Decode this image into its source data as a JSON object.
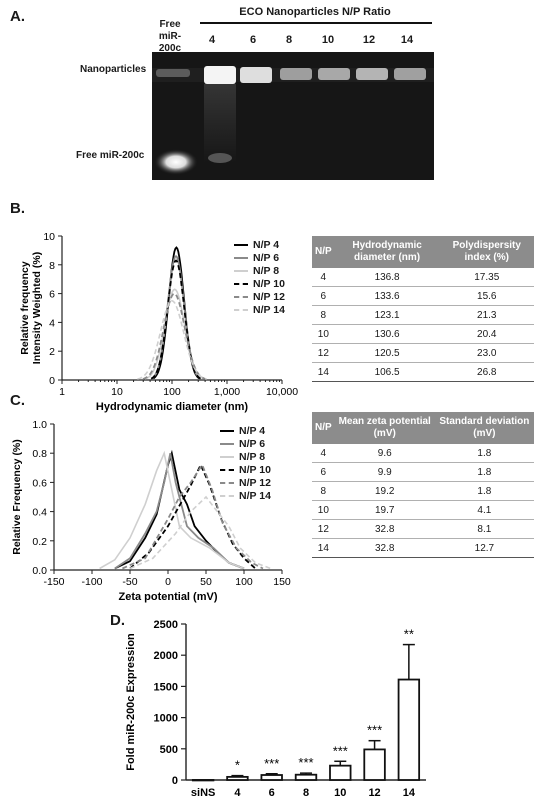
{
  "panel_a": {
    "letter": "A.",
    "title": "ECO Nanoparticles N/P Ratio",
    "free_lane_label": [
      "Free",
      "miR-200c"
    ],
    "lanes": [
      "4",
      "6",
      "8",
      "10",
      "12",
      "14"
    ],
    "row_labels": [
      "Nanoparticles",
      "Free miR-200c"
    ]
  },
  "panel_b": {
    "letter": "B.",
    "table": {
      "headers": [
        "N/P",
        "Hydrodynamic diameter (nm)",
        "Polydispersity index (%)"
      ],
      "rows": [
        [
          "4",
          "136.8",
          "17.35"
        ],
        [
          "6",
          "133.6",
          "15.6"
        ],
        [
          "8",
          "123.1",
          "21.3"
        ],
        [
          "10",
          "130.6",
          "20.4"
        ],
        [
          "12",
          "120.5",
          "23.0"
        ],
        [
          "14",
          "106.5",
          "26.8"
        ]
      ]
    }
  },
  "panel_c": {
    "letter": "C.",
    "table": {
      "headers": [
        "N/P",
        "Mean zeta potential (mV)",
        "Standard deviation (mV)"
      ],
      "rows": [
        [
          "4",
          "9.6",
          "1.8"
        ],
        [
          "6",
          "9.9",
          "1.8"
        ],
        [
          "8",
          "19.2",
          "1.8"
        ],
        [
          "10",
          "19.7",
          "4.1"
        ],
        [
          "12",
          "32.8",
          "8.1"
        ],
        [
          "14",
          "32.8",
          "12.7"
        ]
      ]
    }
  },
  "panel_d": {
    "letter": "D."
  },
  "legend_styles": [
    {
      "color": "#000000",
      "dash": ""
    },
    {
      "color": "#8a8a8a",
      "dash": ""
    },
    {
      "color": "#cfcfcf",
      "dash": ""
    },
    {
      "color": "#000000",
      "dash": "5,3"
    },
    {
      "color": "#8a8a8a",
      "dash": "5,3"
    },
    {
      "color": "#cfcfcf",
      "dash": "5,3"
    }
  ],
  "chart_data": [
    {
      "id": "B",
      "type": "line",
      "xlabel": "Hydrodynamic diameter (nm)",
      "ylabel": "Relative frequency Intensity Weighted (%)",
      "xscale": "log",
      "xlim": [
        1,
        10000
      ],
      "ylim": [
        0,
        10
      ],
      "xticks": [
        "1",
        "10",
        "100",
        "1,000",
        "10,000"
      ],
      "yticks": [
        "0",
        "2",
        "4",
        "6",
        "8",
        "10"
      ],
      "legend_position": "right",
      "series": [
        {
          "name": "N/P 4",
          "peak_x": 120,
          "peak_y": 9.2,
          "width": 0.14
        },
        {
          "name": "N/P 6",
          "peak_x": 118,
          "peak_y": 8.6,
          "width": 0.15
        },
        {
          "name": "N/P 8",
          "peak_x": 112,
          "peak_y": 6.3,
          "width": 0.18
        },
        {
          "name": "N/P 10",
          "peak_x": 118,
          "peak_y": 8.3,
          "width": 0.15
        },
        {
          "name": "N/P 12",
          "peak_x": 110,
          "peak_y": 6.0,
          "width": 0.19
        },
        {
          "name": "N/P 14",
          "peak_x": 100,
          "peak_y": 5.5,
          "width": 0.21
        }
      ]
    },
    {
      "id": "C",
      "type": "line",
      "xlabel": "Zeta potential (mV)",
      "ylabel": "Relative Frequency (%)",
      "xlim": [
        -150,
        150
      ],
      "ylim": [
        0,
        1
      ],
      "xticks": [
        "-150",
        "-100",
        "-50",
        "0",
        "50",
        "100",
        "150"
      ],
      "yticks": [
        "0.0",
        "0.2",
        "0.4",
        "0.6",
        "0.8",
        "1.0"
      ],
      "legend_position": "right",
      "series": [
        {
          "name": "N/P 4",
          "points": [
            [
              -70,
              0.01
            ],
            [
              -50,
              0.06
            ],
            [
              -30,
              0.22
            ],
            [
              -15,
              0.38
            ],
            [
              0,
              0.72
            ],
            [
              5,
              0.8
            ],
            [
              15,
              0.55
            ],
            [
              25,
              0.45
            ],
            [
              35,
              0.3
            ],
            [
              50,
              0.2
            ],
            [
              65,
              0.12
            ],
            [
              80,
              0.05
            ],
            [
              100,
              0.01
            ]
          ]
        },
        {
          "name": "N/P 6",
          "points": [
            [
              -70,
              0.01
            ],
            [
              -50,
              0.08
            ],
            [
              -30,
              0.25
            ],
            [
              -15,
              0.4
            ],
            [
              -5,
              0.6
            ],
            [
              3,
              0.8
            ],
            [
              10,
              0.6
            ],
            [
              25,
              0.3
            ],
            [
              40,
              0.22
            ],
            [
              60,
              0.15
            ],
            [
              80,
              0.05
            ],
            [
              100,
              0.01
            ]
          ]
        },
        {
          "name": "N/P 8",
          "points": [
            [
              -90,
              0.01
            ],
            [
              -70,
              0.07
            ],
            [
              -50,
              0.22
            ],
            [
              -30,
              0.45
            ],
            [
              -15,
              0.68
            ],
            [
              -5,
              0.8
            ],
            [
              5,
              0.55
            ],
            [
              15,
              0.3
            ],
            [
              30,
              0.22
            ],
            [
              55,
              0.15
            ],
            [
              80,
              0.05
            ],
            [
              100,
              0.01
            ]
          ]
        },
        {
          "name": "N/P 10",
          "points": [
            [
              -50,
              0.01
            ],
            [
              -25,
              0.12
            ],
            [
              0,
              0.3
            ],
            [
              15,
              0.44
            ],
            [
              30,
              0.58
            ],
            [
              43,
              0.72
            ],
            [
              55,
              0.58
            ],
            [
              70,
              0.35
            ],
            [
              85,
              0.18
            ],
            [
              100,
              0.08
            ],
            [
              115,
              0.01
            ]
          ]
        },
        {
          "name": "N/P 12",
          "points": [
            [
              -60,
              0.01
            ],
            [
              -30,
              0.08
            ],
            [
              0,
              0.35
            ],
            [
              15,
              0.5
            ],
            [
              30,
              0.6
            ],
            [
              45,
              0.72
            ],
            [
              58,
              0.55
            ],
            [
              72,
              0.32
            ],
            [
              90,
              0.15
            ],
            [
              110,
              0.05
            ],
            [
              125,
              0.01
            ]
          ]
        },
        {
          "name": "N/P 14",
          "points": [
            [
              -50,
              0.01
            ],
            [
              -20,
              0.08
            ],
            [
              10,
              0.25
            ],
            [
              30,
              0.4
            ],
            [
              50,
              0.5
            ],
            [
              62,
              0.42
            ],
            [
              80,
              0.3
            ],
            [
              95,
              0.15
            ],
            [
              115,
              0.05
            ],
            [
              135,
              0.01
            ]
          ]
        }
      ]
    },
    {
      "id": "D",
      "type": "bar",
      "ylabel": "Fold miR-200c Expression",
      "ylim": [
        0,
        2500
      ],
      "yticks": [
        "0",
        "500",
        "1000",
        "1500",
        "2000",
        "2500"
      ],
      "categories": [
        "siNS",
        "4",
        "6",
        "8",
        "10",
        "12",
        "14"
      ],
      "values": [
        1,
        50,
        80,
        85,
        230,
        490,
        1610
      ],
      "errors": [
        0,
        20,
        20,
        25,
        70,
        140,
        560
      ],
      "significance": [
        "",
        "*",
        "***",
        "***",
        "***",
        "***",
        "**"
      ]
    }
  ]
}
